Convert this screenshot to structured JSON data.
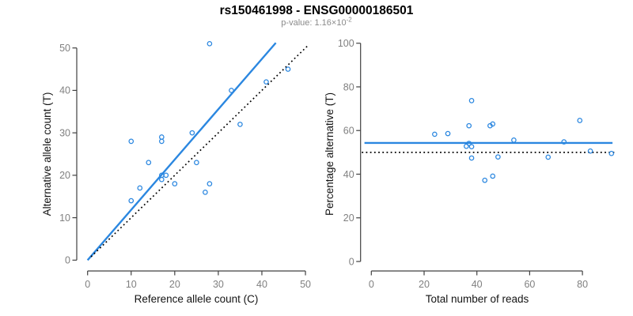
{
  "figure": {
    "title": "rs150461998 - ENSG00000186501",
    "subtitle_prefix": "p-value: 1.16×10",
    "subtitle_exponent": "-2",
    "background_color": "#ffffff",
    "accent_blue": "#2b87e0",
    "dotted_line_color": "#000000",
    "axis_color": "#404040",
    "tick_label_color": "#808080"
  },
  "chart_data": [
    {
      "name": "allele-counts-scatter",
      "type": "scatter",
      "xlabel": "Reference allele count (C)",
      "ylabel": "Alternative allele count (T)",
      "xlim": [
        0,
        50
      ],
      "ylim": [
        0,
        50
      ],
      "xticks": [
        0,
        10,
        20,
        30,
        40,
        50
      ],
      "yticks": [
        0,
        10,
        20,
        30,
        40,
        50
      ],
      "grid": false,
      "legend": "none",
      "point_style": {
        "marker": "open-circle",
        "color": "#2b87e0"
      },
      "points": [
        [
          28,
          51
        ],
        [
          46,
          45
        ],
        [
          41,
          42
        ],
        [
          33,
          40
        ],
        [
          35,
          32
        ],
        [
          24,
          30
        ],
        [
          17,
          29
        ],
        [
          17,
          28
        ],
        [
          10,
          28
        ],
        [
          14,
          23
        ],
        [
          25,
          23
        ],
        [
          17,
          20
        ],
        [
          18,
          20
        ],
        [
          17,
          19
        ],
        [
          20,
          18
        ],
        [
          28,
          18
        ],
        [
          27,
          16
        ],
        [
          12,
          17
        ],
        [
          10,
          14
        ]
      ],
      "lines": [
        {
          "name": "regression-line",
          "style": "solid",
          "color": "#2b87e0",
          "width": 2.4,
          "x": [
            0,
            43.2
          ],
          "y": [
            0,
            51.2
          ]
        },
        {
          "name": "identity-line",
          "style": "dotted",
          "color": "#000000",
          "width": 1.7,
          "x": [
            0.8,
            50.8
          ],
          "y": [
            0.8,
            50.8
          ]
        }
      ]
    },
    {
      "name": "percentage-vs-reads-scatter",
      "type": "scatter",
      "xlabel": "Total number of reads",
      "ylabel": "Percentage alternative (T)",
      "xlim": [
        0,
        91
      ],
      "ylim": [
        0,
        100
      ],
      "xticks": [
        0,
        20,
        40,
        60,
        80
      ],
      "yticks": [
        0,
        20,
        40,
        60,
        80,
        100
      ],
      "grid": false,
      "legend": "none",
      "point_style": {
        "marker": "open-circle",
        "color": "#2b87e0"
      },
      "points": [
        [
          79,
          64.6
        ],
        [
          91,
          49.5
        ],
        [
          83,
          50.6
        ],
        [
          73,
          54.8
        ],
        [
          67,
          47.8
        ],
        [
          54,
          55.6
        ],
        [
          46,
          63.0
        ],
        [
          45,
          62.2
        ],
        [
          38,
          73.7
        ],
        [
          37,
          62.2
        ],
        [
          48,
          47.9
        ],
        [
          37,
          54.1
        ],
        [
          38,
          52.6
        ],
        [
          36,
          52.8
        ],
        [
          38,
          47.4
        ],
        [
          46,
          39.1
        ],
        [
          43,
          37.2
        ],
        [
          29,
          58.6
        ],
        [
          24,
          58.3
        ]
      ],
      "lines": [
        {
          "name": "mean-percentage-line",
          "style": "solid",
          "color": "#2b87e0",
          "width": 2.4,
          "x": [
            -2.6,
            91.4
          ],
          "y": [
            54.3,
            54.3
          ]
        },
        {
          "name": "null-50-percent-line",
          "style": "dotted",
          "color": "#000000",
          "width": 1.7,
          "x": [
            -3.6,
            92.8
          ],
          "y": [
            50,
            50
          ]
        }
      ]
    }
  ]
}
